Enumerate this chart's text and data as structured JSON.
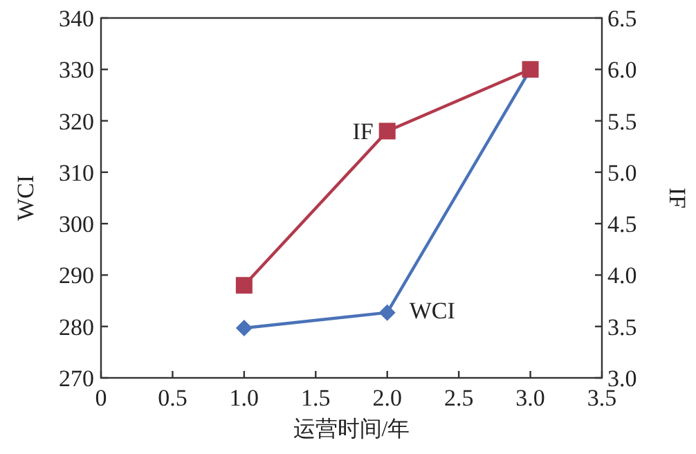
{
  "chart_data": {
    "type": "line",
    "xlabel": "运营时间/年",
    "ylabel": "WCI",
    "y2label": "IF",
    "x": [
      1.0,
      2.0,
      3.0
    ],
    "series": [
      {
        "name": "WCI",
        "color": "#4a72b8",
        "values": [
          279.7,
          282.7,
          330
        ],
        "marker": "diamond"
      },
      {
        "name": "IF",
        "color": "#b23a4c",
        "values": [
          3.9,
          5.4,
          6.0
        ],
        "marker": "square",
        "axis": "y2"
      }
    ],
    "xlim": [
      0,
      3.5
    ],
    "xticks": [
      0,
      {
        "value": 0.5,
        "label": "0.5"
      },
      {
        "value": 1,
        "label": "1.0"
      },
      {
        "value": 1.5,
        "label": "1.5"
      },
      {
        "value": 2,
        "label": "2.0"
      },
      {
        "value": 2.5,
        "label": "2.5"
      },
      {
        "value": 3,
        "label": "3.0"
      },
      {
        "value": 3.5,
        "label": "3.5"
      }
    ],
    "ylim": [
      270,
      340
    ],
    "yticks": [
      270,
      280,
      290,
      300,
      310,
      320,
      330,
      340
    ],
    "y2lim": [
      3.0,
      6.5
    ],
    "y2ticks": [
      {
        "value": 3,
        "label": "3.0"
      },
      {
        "value": 3.5,
        "label": "3.5"
      },
      {
        "value": 4,
        "label": "4.0"
      },
      {
        "value": 4.5,
        "label": "4.5"
      },
      {
        "value": 5,
        "label": "5.0"
      },
      {
        "value": 5.5,
        "label": "5.5"
      },
      {
        "value": 6,
        "label": "6.0"
      },
      {
        "value": 6.5,
        "label": "6.5"
      }
    ],
    "grid": false
  }
}
